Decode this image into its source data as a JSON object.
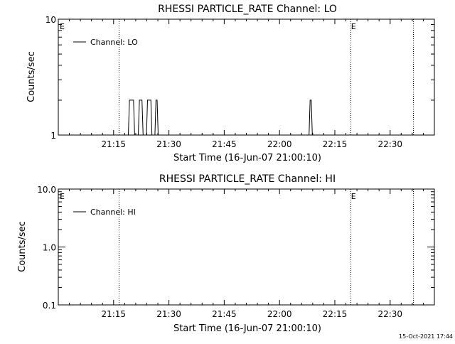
{
  "footer_timestamp": "15-Oct-2021 17:44",
  "chart_data": [
    {
      "type": "line",
      "title": "RHESSI PARTICLE_RATE Channel: LO",
      "xlabel": "Start Time (16-Jun-07 21:00:10)",
      "ylabel": "Counts/sec",
      "yscale": "log",
      "xlim_minutes": [
        0,
        102
      ],
      "ylim": [
        1,
        10
      ],
      "x_tick_labels": [
        "21:15",
        "21:30",
        "21:45",
        "22:00",
        "22:15",
        "22:30"
      ],
      "x_tick_minutes": [
        15,
        30,
        45,
        60,
        75,
        90
      ],
      "y_tick_labels": [
        "1",
        "10"
      ],
      "y_tick_values": [
        1,
        10
      ],
      "legend": {
        "label": "Channel: LO",
        "position": "top-left"
      },
      "event_markers": [
        {
          "label": "E",
          "minute": 0
        },
        {
          "label": "E",
          "minute": 79
        }
      ],
      "vertical_lines_minutes": [
        16.3,
        79.3,
        96.3
      ],
      "series": [
        {
          "name": "Channel: LO",
          "color": "#000000",
          "x": [
            0,
            19.0,
            19.3,
            20.4,
            20.7,
            21.7,
            22.0,
            22.7,
            23.0,
            23.9,
            24.2,
            25.1,
            25.4,
            26.2,
            26.5,
            26.8,
            27.1,
            68.0,
            68.3,
            68.6,
            68.9,
            102
          ],
          "y": [
            1,
            1,
            2,
            2,
            1,
            1,
            2,
            2,
            1,
            1,
            2,
            2,
            1,
            1,
            2,
            2,
            1,
            1,
            2,
            2,
            1,
            1
          ]
        }
      ]
    },
    {
      "type": "line",
      "title": "RHESSI PARTICLE_RATE Channel: HI",
      "xlabel": "Start Time (16-Jun-07 21:00:10)",
      "ylabel": "Counts/sec",
      "yscale": "log",
      "xlim_minutes": [
        0,
        102
      ],
      "ylim": [
        0.1,
        10
      ],
      "x_tick_labels": [
        "21:15",
        "21:30",
        "21:45",
        "22:00",
        "22:15",
        "22:30"
      ],
      "x_tick_minutes": [
        15,
        30,
        45,
        60,
        75,
        90
      ],
      "y_tick_labels": [
        "0.1",
        "1.0",
        "10.0"
      ],
      "y_tick_values": [
        0.1,
        1,
        10
      ],
      "legend": {
        "label": "Channel: HI",
        "position": "top-left"
      },
      "event_markers": [
        {
          "label": "E",
          "minute": 0
        },
        {
          "label": "E",
          "minute": 79
        }
      ],
      "vertical_lines_minutes": [
        16.3,
        79.3,
        96.3
      ],
      "series": [
        {
          "name": "Channel: HI",
          "color": "#000000",
          "x": [],
          "y": []
        }
      ]
    }
  ]
}
